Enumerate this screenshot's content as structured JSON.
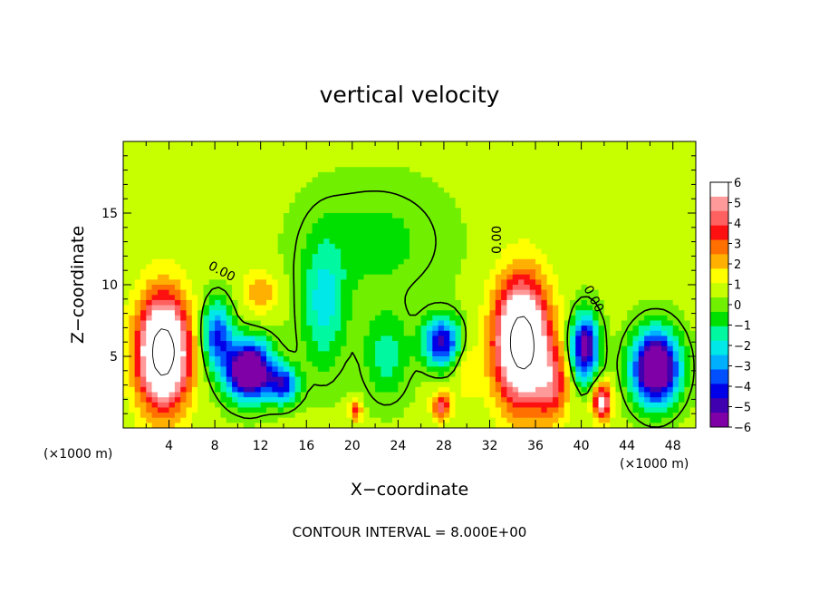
{
  "chart_data": {
    "type": "heatmap",
    "title": "vertical velocity",
    "xlabel": "X−coordinate",
    "ylabel": "Z−coordinate",
    "x_unit_left": "(×1000 m)",
    "x_unit_right": "(×1000 m)",
    "footer": "CONTOUR INTERVAL = 8.000E+00",
    "xlim": [
      0,
      50
    ],
    "ylim": [
      0,
      20
    ],
    "x_ticks": [
      4,
      8,
      12,
      16,
      20,
      24,
      28,
      32,
      36,
      40,
      44,
      48
    ],
    "y_ticks": [
      5,
      10,
      15
    ],
    "zero_labels": [
      "0.00",
      "0.00",
      "0.00"
    ],
    "colorbar": {
      "min": -6,
      "max": 6,
      "labels": [
        "6",
        "5",
        "4",
        "3",
        "2",
        "1",
        "0",
        "−1",
        "−2",
        "−3",
        "−4",
        "−5",
        "−6"
      ],
      "colors": [
        "#ffffff",
        "#ff9a9a",
        "#ff6060",
        "#ff1010",
        "#ff7000",
        "#ffb000",
        "#ffff00",
        "#c8ff00",
        "#70f000",
        "#00e000",
        "#00f8a0",
        "#00e8e8",
        "#00b0ff",
        "#0050ff",
        "#0000e8",
        "#4000b0",
        "#8000a8"
      ]
    },
    "features": [
      {
        "x": 3.5,
        "z": 5.3,
        "sx": 2.2,
        "sz": 3.8,
        "w": 9.0
      },
      {
        "x": 34.8,
        "z": 6.0,
        "sx": 2.3,
        "sz": 4.2,
        "w": 9.0
      },
      {
        "x": 11.0,
        "z": 4.0,
        "sx": 2.0,
        "sz": 2.0,
        "w": -8.5
      },
      {
        "x": 46.5,
        "z": 4.2,
        "sx": 2.0,
        "sz": 2.5,
        "w": -8.5
      },
      {
        "x": 40.3,
        "z": 5.6,
        "sx": 1.2,
        "sz": 2.3,
        "w": -6.5
      },
      {
        "x": 27.8,
        "z": 6.0,
        "sx": 1.6,
        "sz": 1.7,
        "w": -5.5
      },
      {
        "x": 14.0,
        "z": 3.0,
        "sx": 1.3,
        "sz": 1.3,
        "w": -4.5
      },
      {
        "x": 8.2,
        "z": 6.5,
        "sx": 1.3,
        "sz": 2.3,
        "w": -4.5
      },
      {
        "x": 17.5,
        "z": 8.5,
        "sx": 2.0,
        "sz": 4.5,
        "w": -2.5
      },
      {
        "x": 23.0,
        "z": 5.0,
        "sx": 2.0,
        "sz": 3.0,
        "w": -2.0
      },
      {
        "x": 22.0,
        "z": 13.0,
        "sx": 6.0,
        "sz": 4.0,
        "w": -1.2
      },
      {
        "x": 41.8,
        "z": 1.8,
        "sx": 0.8,
        "sz": 1.3,
        "w": 5.0
      },
      {
        "x": 27.8,
        "z": 1.5,
        "sx": 0.8,
        "sz": 1.0,
        "w": 3.8
      },
      {
        "x": 20.3,
        "z": 1.2,
        "sx": 0.5,
        "sz": 0.7,
        "w": 3.2
      },
      {
        "x": 37.5,
        "z": 3.0,
        "sx": 1.5,
        "sz": 2.5,
        "w": 3.0
      },
      {
        "x": 12.0,
        "z": 9.5,
        "sx": 1.5,
        "sz": 1.5,
        "w": 1.8
      },
      {
        "x": 30.0,
        "z": 4.0,
        "sx": 1.0,
        "sz": 2.0,
        "w": 1.2
      }
    ]
  }
}
